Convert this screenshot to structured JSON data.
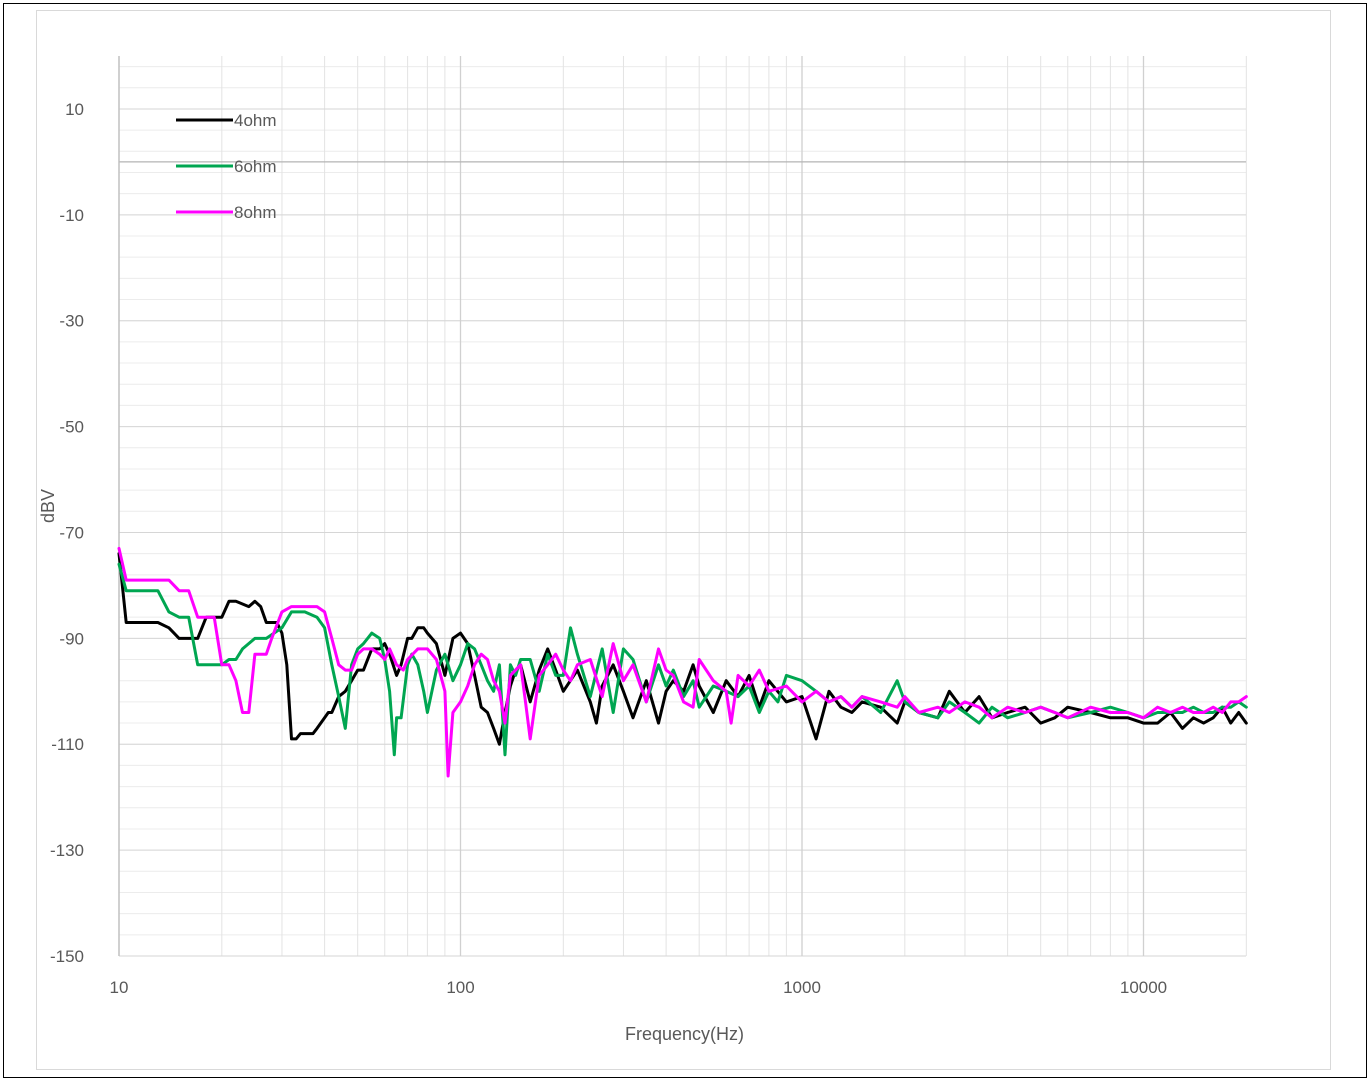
{
  "chart_data": {
    "type": "line",
    "xscale": "log",
    "xlim": [
      10,
      20000
    ],
    "ylim": [
      -150,
      20
    ],
    "grid": true,
    "legend_position": "top-left",
    "xlabel": "Frequency(Hz)",
    "ylabel": "dBV",
    "x_ticks": [
      10,
      100,
      1000,
      10000
    ],
    "x_tick_labels": [
      "10",
      "100",
      "1000",
      "10000"
    ],
    "y_ticks": [
      10,
      -10,
      -30,
      -50,
      -70,
      -90,
      -110,
      -130,
      -150
    ],
    "y_tick_labels": [
      "10",
      "-10",
      "-30",
      "-50",
      "-70",
      "-90",
      "-110",
      "-130",
      "-150"
    ],
    "series": [
      {
        "name": "4ohm",
        "color": "#000000",
        "x": [
          10,
          10.5,
          11,
          13,
          14,
          15,
          16,
          17,
          18,
          19,
          20,
          21,
          22,
          24,
          25,
          26,
          27,
          28,
          29,
          30,
          31,
          32,
          33,
          34,
          35,
          36,
          37,
          38,
          40,
          41,
          42,
          44,
          46,
          48,
          50,
          52,
          55,
          58,
          60,
          62,
          65,
          67,
          70,
          72,
          75,
          78,
          80,
          85,
          90,
          95,
          100,
          105,
          110,
          115,
          120,
          125,
          130,
          135,
          140,
          145,
          150,
          160,
          170,
          180,
          190,
          200,
          220,
          240,
          250,
          260,
          280,
          300,
          320,
          350,
          380,
          400,
          420,
          450,
          480,
          500,
          550,
          600,
          650,
          700,
          750,
          800,
          900,
          1000,
          1100,
          1200,
          1300,
          1400,
          1500,
          1700,
          1900,
          2000,
          2200,
          2500,
          2700,
          3000,
          3300,
          3600,
          4000,
          4500,
          5000,
          5500,
          6000,
          7000,
          8000,
          9000,
          10000,
          11000,
          12000,
          13000,
          14000,
          15000,
          16000,
          17000,
          18000,
          19000,
          20000
        ],
        "y": [
          -74,
          -87,
          -87,
          -87,
          -88,
          -90,
          -90,
          -90,
          -86,
          -86,
          -86,
          -83,
          -83,
          -84,
          -83,
          -84,
          -87,
          -87,
          -87,
          -89,
          -95,
          -109,
          -109,
          -108,
          -108,
          -108,
          -108,
          -107,
          -105,
          -104,
          -104,
          -101,
          -100,
          -98,
          -96,
          -96,
          -92,
          -92,
          -91,
          -93,
          -97,
          -95,
          -90,
          -90,
          -88,
          -88,
          -89,
          -91,
          -97,
          -90,
          -89,
          -91,
          -97,
          -103,
          -104,
          -107,
          -110,
          -104,
          -99,
          -96,
          -95,
          -102,
          -96,
          -92,
          -96,
          -100,
          -96,
          -102,
          -106,
          -99,
          -95,
          -100,
          -105,
          -98,
          -106,
          -100,
          -98,
          -100,
          -95,
          -99,
          -104,
          -98,
          -101,
          -97,
          -103,
          -98,
          -102,
          -101,
          -109,
          -100,
          -103,
          -104,
          -102,
          -103,
          -106,
          -102,
          -104,
          -105,
          -100,
          -104,
          -101,
          -105,
          -104,
          -103,
          -106,
          -105,
          -103,
          -104,
          -105,
          -105,
          -106,
          -106,
          -104,
          -107,
          -105,
          -106,
          -105,
          -103,
          -106,
          -104,
          -106
        ]
      },
      {
        "name": "6ohm",
        "color": "#00a651",
        "x": [
          10,
          10.5,
          11,
          12,
          13,
          14,
          15,
          16,
          17,
          18,
          19,
          20,
          21,
          22,
          23,
          25,
          27,
          30,
          32,
          35,
          38,
          40,
          42,
          44,
          46,
          48,
          50,
          52,
          55,
          58,
          60,
          62,
          64,
          65,
          67,
          70,
          72,
          75,
          78,
          80,
          85,
          90,
          95,
          100,
          105,
          110,
          115,
          120,
          125,
          130,
          135,
          140,
          145,
          150,
          160,
          170,
          180,
          190,
          200,
          210,
          220,
          240,
          260,
          280,
          300,
          320,
          350,
          380,
          400,
          420,
          450,
          480,
          500,
          550,
          600,
          650,
          700,
          750,
          800,
          850,
          900,
          1000,
          1100,
          1200,
          1300,
          1400,
          1500,
          1700,
          1900,
          2000,
          2200,
          2500,
          2700,
          3000,
          3300,
          3600,
          4000,
          4500,
          5000,
          5500,
          6000,
          7000,
          8000,
          9000,
          10000,
          11000,
          12000,
          13000,
          14000,
          15000,
          16000,
          17000,
          18000,
          19000,
          20000
        ],
        "y": [
          -76,
          -81,
          -81,
          -81,
          -81,
          -85,
          -86,
          -86,
          -95,
          -95,
          -95,
          -95,
          -94,
          -94,
          -92,
          -90,
          -90,
          -88,
          -85,
          -85,
          -86,
          -88,
          -95,
          -101,
          -107,
          -95,
          -92,
          -91,
          -89,
          -90,
          -94,
          -100,
          -112,
          -105,
          -105,
          -95,
          -93,
          -95,
          -100,
          -104,
          -96,
          -93,
          -98,
          -95,
          -91,
          -92,
          -95,
          -98,
          -100,
          -95,
          -112,
          -95,
          -97,
          -94,
          -94,
          -100,
          -93,
          -97,
          -97,
          -88,
          -93,
          -101,
          -92,
          -104,
          -92,
          -94,
          -102,
          -95,
          -99,
          -96,
          -101,
          -98,
          -103,
          -99,
          -100,
          -101,
          -99,
          -104,
          -100,
          -102,
          -97,
          -98,
          -100,
          -102,
          -101,
          -103,
          -101,
          -104,
          -98,
          -102,
          -104,
          -105,
          -102,
          -104,
          -106,
          -103,
          -105,
          -104,
          -103,
          -104,
          -105,
          -104,
          -103,
          -104,
          -105,
          -104,
          -104,
          -104,
          -103,
          -104,
          -104,
          -103,
          -103,
          -102,
          -103
        ]
      },
      {
        "name": "8ohm",
        "color": "#ff00ff",
        "x": [
          10,
          10.5,
          11,
          12,
          13,
          14,
          15,
          16,
          17,
          18,
          19,
          20,
          21,
          22,
          23,
          24,
          25,
          26,
          27,
          28,
          30,
          32,
          34,
          36,
          38,
          40,
          42,
          44,
          46,
          48,
          50,
          52,
          55,
          58,
          60,
          62,
          65,
          68,
          70,
          75,
          80,
          85,
          90,
          92,
          95,
          100,
          105,
          110,
          115,
          120,
          125,
          130,
          135,
          140,
          145,
          150,
          155,
          160,
          170,
          180,
          190,
          200,
          210,
          220,
          240,
          260,
          280,
          300,
          320,
          350,
          380,
          400,
          420,
          450,
          480,
          500,
          550,
          600,
          620,
          650,
          700,
          750,
          800,
          900,
          1000,
          1100,
          1200,
          1300,
          1400,
          1500,
          1700,
          1900,
          2000,
          2200,
          2500,
          2700,
          3000,
          3300,
          3600,
          4000,
          4500,
          5000,
          5500,
          6000,
          7000,
          8000,
          9000,
          10000,
          11000,
          12000,
          13000,
          14000,
          15000,
          16000,
          17000,
          18000,
          19000,
          20000
        ],
        "y": [
          -73,
          -79,
          -79,
          -79,
          -79,
          -79,
          -81,
          -81,
          -86,
          -86,
          -86,
          -95,
          -95,
          -98,
          -104,
          -104,
          -93,
          -93,
          -93,
          -90,
          -85,
          -84,
          -84,
          -84,
          -84,
          -85,
          -90,
          -95,
          -96,
          -96,
          -93,
          -92,
          -92,
          -93,
          -94,
          -92,
          -95,
          -96,
          -94,
          -92,
          -92,
          -94,
          -100,
          -116,
          -104,
          -102,
          -99,
          -95,
          -93,
          -94,
          -98,
          -100,
          -106,
          -97,
          -96,
          -95,
          -102,
          -109,
          -97,
          -95,
          -93,
          -96,
          -98,
          -95,
          -94,
          -101,
          -91,
          -98,
          -95,
          -102,
          -92,
          -96,
          -97,
          -102,
          -103,
          -94,
          -98,
          -100,
          -106,
          -97,
          -99,
          -96,
          -100,
          -99,
          -102,
          -100,
          -102,
          -101,
          -103,
          -101,
          -102,
          -103,
          -101,
          -104,
          -103,
          -104,
          -102,
          -103,
          -105,
          -103,
          -104,
          -103,
          -104,
          -105,
          -103,
          -104,
          -104,
          -105,
          -103,
          -104,
          -103,
          -104,
          -104,
          -103,
          -104,
          -102,
          -102,
          -101
        ]
      }
    ]
  }
}
